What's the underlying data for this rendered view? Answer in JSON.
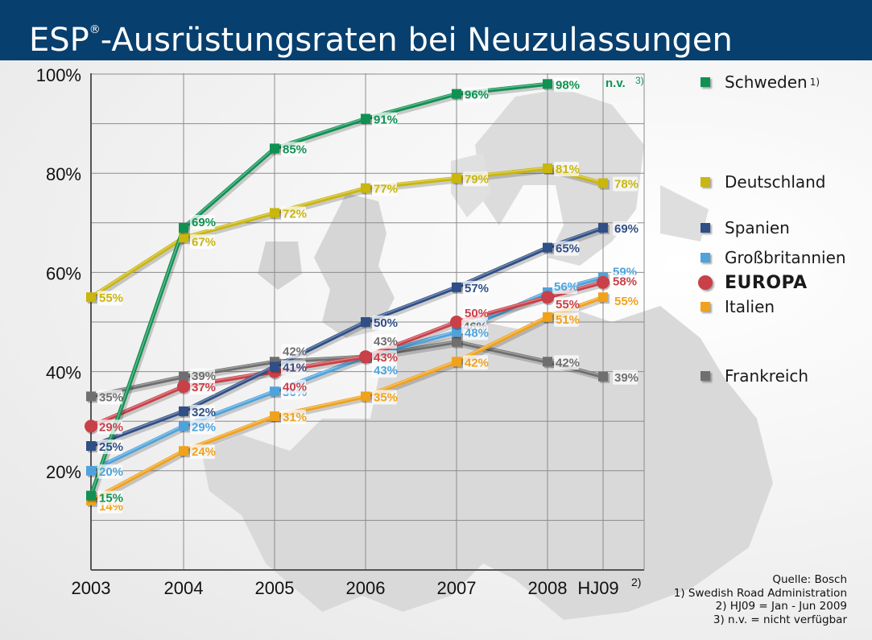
{
  "header": {
    "title_prefix": "ESP",
    "title_mark": "®",
    "title_rest": "-Ausrüstungsraten bei Neuzulassungen"
  },
  "chart_data": {
    "type": "line",
    "title": "ESP®-Ausrüstungsraten bei Neuzulassungen",
    "categories": [
      "2003",
      "2004",
      "2005",
      "2006",
      "2007",
      "2008",
      "HJ09"
    ],
    "category_note": "2)",
    "ylim": [
      0,
      100
    ],
    "yticks": [
      20,
      40,
      60,
      80,
      100
    ],
    "ytick_labels": [
      "20%",
      "40%",
      "60%",
      "80%",
      "100%"
    ],
    "grid": true,
    "legend_position": "right",
    "series": [
      {
        "name": "Schweden",
        "note": "1)",
        "color": "#0f9152",
        "marker": "square",
        "values": [
          15,
          69,
          85,
          91,
          96,
          98,
          null
        ],
        "labels": [
          "15%",
          "69%",
          "85%",
          "91%",
          "96%",
          "98%",
          null
        ]
      },
      {
        "name": "Deutschland",
        "color": "#c9b60e",
        "marker": "square",
        "values": [
          55,
          67,
          72,
          77,
          79,
          81,
          78
        ],
        "labels": [
          "55%",
          "67%",
          "72%",
          "77%",
          "79%",
          "81%",
          "78%"
        ]
      },
      {
        "name": "Spanien",
        "color": "#2f4f86",
        "marker": "square",
        "values": [
          25,
          32,
          41,
          50,
          57,
          65,
          69
        ],
        "labels": [
          "25%",
          "32%",
          "41%",
          "50%",
          "57%",
          "65%",
          "69%"
        ]
      },
      {
        "name": "Großbritannien",
        "color": "#4ea3dc",
        "marker": "square",
        "values": [
          20,
          29,
          36,
          43,
          48,
          56,
          59
        ],
        "labels": [
          "20%",
          "29%",
          "36%",
          "43%",
          "48%",
          "56%",
          "59%"
        ]
      },
      {
        "name": "EUROPA",
        "color": "#c94048",
        "marker": "circle",
        "values": [
          29,
          37,
          40,
          43,
          50,
          55,
          58
        ],
        "labels": [
          "29%",
          "37%",
          "40%",
          "43%",
          "50%",
          "55%",
          "58%"
        ]
      },
      {
        "name": "Italien",
        "color": "#f0a21c",
        "marker": "square",
        "values": [
          14,
          24,
          31,
          35,
          42,
          51,
          55
        ],
        "labels": [
          "14%",
          "24%",
          "31%",
          "35%",
          "42%",
          "51%",
          "55%"
        ]
      },
      {
        "name": "Frankreich",
        "color": "#6f6f6f",
        "marker": "square",
        "values": [
          35,
          39,
          42,
          43,
          46,
          42,
          39
        ],
        "labels": [
          "35%",
          "39%",
          "42%",
          "43%",
          "46%",
          "42%",
          "39%"
        ]
      }
    ],
    "annotations": [
      {
        "series": "Schweden",
        "category": "HJ09",
        "text": "n.v.",
        "note": "3)"
      }
    ]
  },
  "footnotes": {
    "source": "Quelle: Bosch",
    "lines": [
      "1) Swedish Road Administration",
      "2) HJ09 = Jan - Jun 2009",
      "3) n.v. = nicht verfügbar"
    ]
  }
}
